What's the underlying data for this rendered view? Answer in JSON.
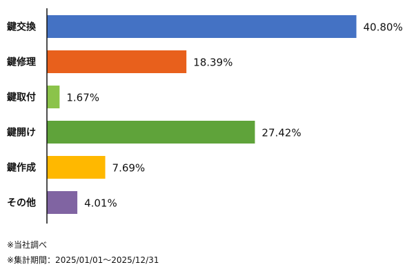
{
  "chart_data": {
    "type": "bar",
    "orientation": "horizontal",
    "categories": [
      "鍵交換",
      "鍵修理",
      "鍵取付",
      "鍵開け",
      "鍵作成",
      "その他"
    ],
    "values": [
      40.8,
      18.39,
      1.67,
      27.42,
      7.69,
      4.01
    ],
    "value_labels": [
      "40.80%",
      "18.39%",
      "1.67%",
      "27.42%",
      "7.69%",
      "4.01%"
    ],
    "colors": [
      "#4472C4",
      "#E8601C",
      "#8BC34A",
      "#5FA33A",
      "#FFB800",
      "#8064A2"
    ],
    "xlim": [
      0,
      41.3
    ],
    "grid": false,
    "legend": "none"
  },
  "notes": {
    "source": "※当社調べ",
    "period": "※集計期間：2025/01/01～2025/12/31"
  }
}
